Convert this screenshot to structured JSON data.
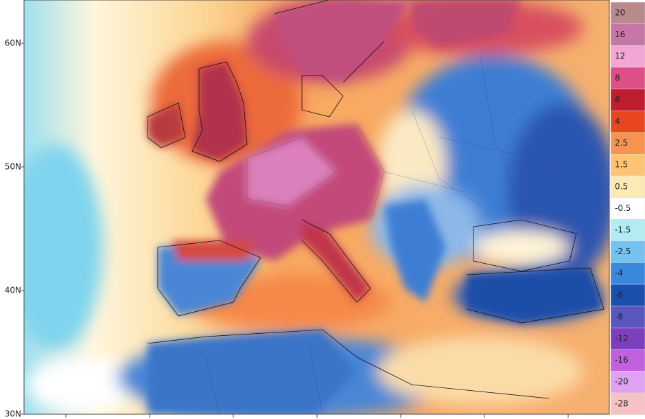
{
  "map": {
    "latitude_labels": [
      "60N",
      "50N",
      "40N",
      "30N"
    ],
    "colorbar": {
      "labels": [
        "20",
        "16",
        "12",
        "8",
        "6",
        "4",
        "2.5",
        "1.5",
        "0.5",
        "-0.5",
        "-1.5",
        "-2.5",
        "-4",
        "-6",
        "-8",
        "-12",
        "-16",
        "-20",
        "-28"
      ],
      "colors": [
        "#b88a8c",
        "#c777a6",
        "#f2a6d4",
        "#dd4f86",
        "#bf1e2e",
        "#e8461e",
        "#f89250",
        "#fcc474",
        "#fde9b4",
        "#ffffff",
        "#b2ecf2",
        "#74c2f0",
        "#3a88de",
        "#1a4fae",
        "#5a58bf",
        "#7d3fbd",
        "#c260de",
        "#dfa2f0",
        "#f6c2c4"
      ]
    }
  }
}
